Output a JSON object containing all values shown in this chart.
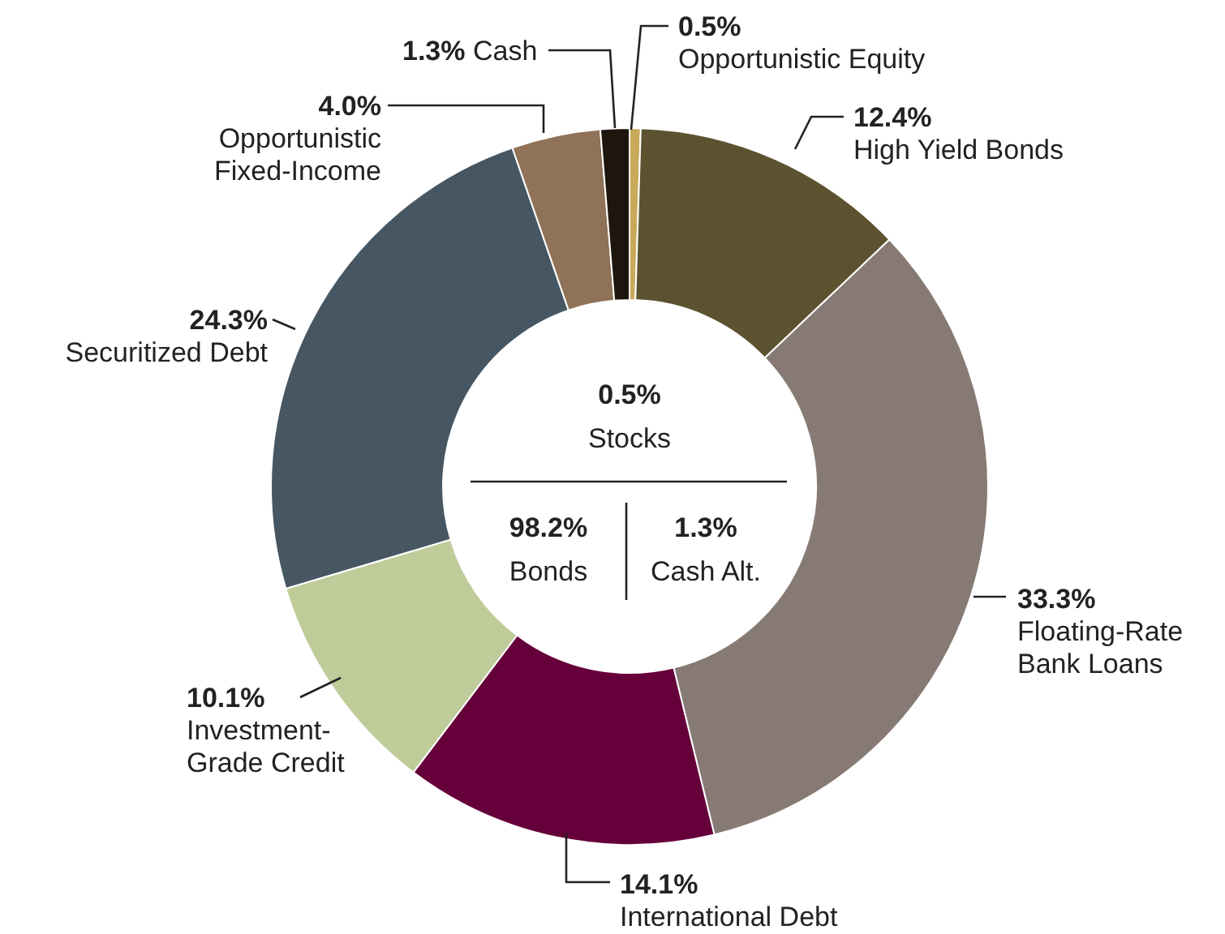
{
  "chart_data": {
    "type": "donut",
    "categories": [
      "Opportunistic Equity",
      "High Yield Bonds",
      "Floating-Rate\nBank Loans",
      "International Debt",
      "Investment-\nGrade Credit",
      "Securitized Debt",
      "Opportunistic\nFixed-Income",
      "Cash"
    ],
    "values": [
      0.5,
      12.4,
      33.3,
      14.1,
      10.1,
      24.3,
      4.0,
      1.3
    ],
    "value_labels": [
      "0.5%",
      "12.4%",
      "33.3%",
      "14.1%",
      "10.1%",
      "24.3%",
      "4.0%",
      "1.3%"
    ],
    "colors": [
      "#c9a95a",
      "#5c5230",
      "#877a74",
      "#66003a",
      "#c0cb9a",
      "#465763",
      "#8f7257",
      "#1e160c"
    ],
    "annotations": [
      "0.5%",
      "Stocks",
      "98.2%",
      "Bonds",
      "1.3%",
      "Cash Alt."
    ]
  }
}
